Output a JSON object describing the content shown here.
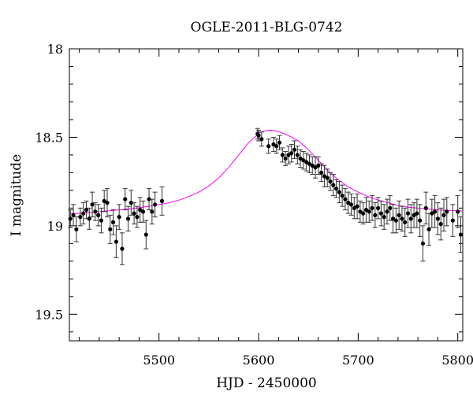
{
  "chart_data": {
    "type": "scatter",
    "title": "OGLE-2011-BLG-0742",
    "xlabel": "HJD - 2450000",
    "ylabel": "I magnitude",
    "xlim": [
      5410,
      5805
    ],
    "ylim": [
      19.65,
      18.0
    ],
    "y_inverted": true,
    "x_ticks": [
      5500,
      5600,
      5700,
      5800
    ],
    "x_tick_labels": [
      "5500",
      "5600",
      "5700",
      "5800"
    ],
    "y_ticks": [
      18.0,
      18.5,
      19.0,
      19.5
    ],
    "y_tick_labels": [
      "18",
      "18.5",
      "19",
      "19.5"
    ],
    "grid": false,
    "legend": "none",
    "model_color": "#ff00ff",
    "point_color": "#000000",
    "model": {
      "x": [
        5410,
        5420,
        5430,
        5440,
        5450,
        5460,
        5470,
        5480,
        5490,
        5500,
        5510,
        5520,
        5530,
        5540,
        5550,
        5560,
        5570,
        5580,
        5590,
        5600,
        5605,
        5610,
        5615,
        5620,
        5625,
        5630,
        5640,
        5650,
        5660,
        5670,
        5680,
        5690,
        5700,
        5710,
        5720,
        5730,
        5740,
        5750,
        5760,
        5770,
        5780,
        5790,
        5800,
        5805
      ],
      "y": [
        18.93,
        18.93,
        18.925,
        18.92,
        18.915,
        18.91,
        18.905,
        18.898,
        18.89,
        18.88,
        18.87,
        18.855,
        18.835,
        18.81,
        18.775,
        18.73,
        18.67,
        18.6,
        18.53,
        18.48,
        18.465,
        18.46,
        18.462,
        18.468,
        18.478,
        18.49,
        18.52,
        18.57,
        18.63,
        18.69,
        18.74,
        18.78,
        18.81,
        18.835,
        18.855,
        18.87,
        18.885,
        18.895,
        18.9,
        18.905,
        18.91,
        18.913,
        18.915,
        18.917
      ]
    },
    "series": [
      {
        "x": [
          5411,
          5414,
          5417,
          5421,
          5424,
          5427,
          5430,
          5433,
          5436,
          5439,
          5442,
          5445,
          5448,
          5451,
          5454,
          5457,
          5460,
          5463,
          5466,
          5469,
          5472,
          5475,
          5478,
          5481,
          5484,
          5487,
          5490,
          5493,
          5496,
          5503,
          5599,
          5600,
          5603,
          5610,
          5615,
          5618,
          5621,
          5624,
          5627,
          5630,
          5633,
          5636,
          5639,
          5642,
          5645,
          5648,
          5651,
          5654,
          5657,
          5660,
          5663,
          5666,
          5669,
          5672,
          5675,
          5678,
          5681,
          5684,
          5687,
          5690,
          5693,
          5696,
          5699,
          5702,
          5705,
          5708,
          5711,
          5714,
          5717,
          5720,
          5723,
          5726,
          5729,
          5732,
          5735,
          5738,
          5741,
          5744,
          5747,
          5750,
          5753,
          5756,
          5759,
          5762,
          5765,
          5768,
          5771,
          5774,
          5777,
          5780,
          5783,
          5786,
          5789,
          5795,
          5800,
          5803
        ],
        "y": [
          18.96,
          18.94,
          19.02,
          18.95,
          18.93,
          18.91,
          18.96,
          18.88,
          18.92,
          18.94,
          18.97,
          18.86,
          18.87,
          19.02,
          18.98,
          19.09,
          18.95,
          19.13,
          18.85,
          18.96,
          18.87,
          18.93,
          18.95,
          18.91,
          18.92,
          19.05,
          18.85,
          18.92,
          18.88,
          18.86,
          18.48,
          18.49,
          18.51,
          18.55,
          18.54,
          18.55,
          18.53,
          18.6,
          18.62,
          18.6,
          18.59,
          18.57,
          18.6,
          18.62,
          18.63,
          18.64,
          18.65,
          18.66,
          18.67,
          18.66,
          18.7,
          18.72,
          18.73,
          18.75,
          18.77,
          18.79,
          18.81,
          18.83,
          18.85,
          18.87,
          18.88,
          18.9,
          18.89,
          18.92,
          18.93,
          18.91,
          18.92,
          18.9,
          18.94,
          18.9,
          18.93,
          18.95,
          18.92,
          18.9,
          18.96,
          18.97,
          18.94,
          18.96,
          18.98,
          18.93,
          18.96,
          18.94,
          18.93,
          18.97,
          19.1,
          18.9,
          19.02,
          18.93,
          18.92,
          18.96,
          18.99,
          18.94,
          18.92,
          18.97,
          18.92,
          19.05
        ],
        "err": [
          0.05,
          0.06,
          0.07,
          0.05,
          0.06,
          0.05,
          0.06,
          0.07,
          0.05,
          0.06,
          0.07,
          0.06,
          0.08,
          0.08,
          0.07,
          0.09,
          0.07,
          0.09,
          0.06,
          0.07,
          0.07,
          0.06,
          0.06,
          0.07,
          0.06,
          0.08,
          0.06,
          0.07,
          0.07,
          0.08,
          0.03,
          0.03,
          0.04,
          0.04,
          0.04,
          0.04,
          0.04,
          0.04,
          0.04,
          0.05,
          0.05,
          0.05,
          0.05,
          0.05,
          0.05,
          0.05,
          0.05,
          0.05,
          0.06,
          0.05,
          0.05,
          0.06,
          0.05,
          0.05,
          0.06,
          0.05,
          0.06,
          0.06,
          0.06,
          0.06,
          0.06,
          0.06,
          0.07,
          0.06,
          0.06,
          0.07,
          0.06,
          0.07,
          0.07,
          0.06,
          0.07,
          0.07,
          0.07,
          0.07,
          0.08,
          0.07,
          0.08,
          0.07,
          0.08,
          0.08,
          0.08,
          0.07,
          0.08,
          0.09,
          0.1,
          0.09,
          0.09,
          0.08,
          0.09,
          0.09,
          0.09,
          0.09,
          0.08,
          0.09,
          0.09,
          0.1
        ]
      }
    ]
  }
}
